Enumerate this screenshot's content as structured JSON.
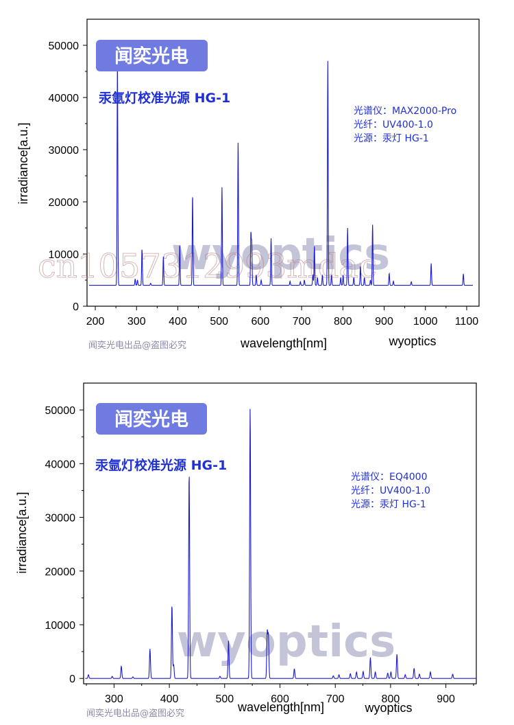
{
  "chart_data": [
    {
      "type": "line",
      "title": "汞氩灯校准光源 HG-1",
      "brand": "闻奕光电",
      "info_lines": [
        "光谱仪：MAX2000-Pro",
        "光纤：UV400-1.0",
        "光源：汞灯 HG-1"
      ],
      "xlabel": "wavelength[nm]",
      "ylabel": "irradiance[a.u.]",
      "credit_left": "闻奕光电出品@盗图必究",
      "credit_right": "wyoptics",
      "watermarks": [
        "wyoptics",
        "cn1057312993mdac"
      ],
      "xlim": [
        180,
        1130
      ],
      "ylim": [
        0,
        55000
      ],
      "xticks": [
        200,
        300,
        400,
        500,
        600,
        700,
        800,
        900,
        1000,
        1100
      ],
      "yticks": [
        0,
        10000,
        20000,
        30000,
        40000,
        50000
      ],
      "series_color": "#1a1ad0",
      "baseline": 4000,
      "x_start": 185,
      "x_end": 1115,
      "peaks": [
        {
          "x": 253.7,
          "y": 47000
        },
        {
          "x": 296.7,
          "y": 5200
        },
        {
          "x": 302.2,
          "y": 5000
        },
        {
          "x": 313.2,
          "y": 11000
        },
        {
          "x": 334.1,
          "y": 4400
        },
        {
          "x": 365.0,
          "y": 9500
        },
        {
          "x": 404.7,
          "y": 11800
        },
        {
          "x": 435.8,
          "y": 21300
        },
        {
          "x": 507.0,
          "y": 22800
        },
        {
          "x": 546.1,
          "y": 31500
        },
        {
          "x": 577.0,
          "y": 13700
        },
        {
          "x": 579.1,
          "y": 12000
        },
        {
          "x": 590.0,
          "y": 6000
        },
        {
          "x": 602.0,
          "y": 5000
        },
        {
          "x": 626.0,
          "y": 13000
        },
        {
          "x": 672.0,
          "y": 4800
        },
        {
          "x": 697.0,
          "y": 4700
        },
        {
          "x": 706.7,
          "y": 5000
        },
        {
          "x": 727.3,
          "y": 6000
        },
        {
          "x": 731.0,
          "y": 11500
        },
        {
          "x": 738.4,
          "y": 5500
        },
        {
          "x": 750.4,
          "y": 6000
        },
        {
          "x": 763.5,
          "y": 47000
        },
        {
          "x": 772.4,
          "y": 6000
        },
        {
          "x": 794.8,
          "y": 5500
        },
        {
          "x": 800.6,
          "y": 6000
        },
        {
          "x": 811.5,
          "y": 15000
        },
        {
          "x": 826.5,
          "y": 5500
        },
        {
          "x": 842.5,
          "y": 7600
        },
        {
          "x": 852.1,
          "y": 5500
        },
        {
          "x": 866.8,
          "y": 5000
        },
        {
          "x": 872.0,
          "y": 15600
        },
        {
          "x": 912.3,
          "y": 6300
        },
        {
          "x": 922.4,
          "y": 4800
        },
        {
          "x": 965.8,
          "y": 4700
        },
        {
          "x": 1014.0,
          "y": 8200
        },
        {
          "x": 1092.0,
          "y": 6200
        }
      ]
    },
    {
      "type": "line",
      "title": "汞氩灯校准光源 HG-1",
      "brand": "闻奕光电",
      "info_lines": [
        "光谱仪：EQ4000",
        "光纤：UV400-1.0",
        "光源：汞灯 HG-1"
      ],
      "xlabel": "wavelength[nm]",
      "ylabel": "irradiance[a.u.]",
      "credit_left": "闻奕光电出品@盗图必究",
      "credit_right": "wyoptics",
      "watermarks": [
        "wyoptics"
      ],
      "xlim": [
        245,
        955
      ],
      "ylim": [
        -1000,
        55000
      ],
      "xticks": [
        300,
        400,
        500,
        600,
        700,
        800,
        900
      ],
      "yticks": [
        0,
        10000,
        20000,
        30000,
        40000,
        50000
      ],
      "series_color": "#1a1ad0",
      "baseline": 0,
      "x_start": 248,
      "x_end": 955,
      "peaks": [
        {
          "x": 253.7,
          "y": 700
        },
        {
          "x": 296.7,
          "y": 400
        },
        {
          "x": 313.2,
          "y": 2300
        },
        {
          "x": 334.1,
          "y": 300
        },
        {
          "x": 365.0,
          "y": 5500
        },
        {
          "x": 404.7,
          "y": 13700
        },
        {
          "x": 407.8,
          "y": 2600
        },
        {
          "x": 435.8,
          "y": 38500
        },
        {
          "x": 491.6,
          "y": 400
        },
        {
          "x": 507.0,
          "y": 7000
        },
        {
          "x": 546.1,
          "y": 50500
        },
        {
          "x": 577.0,
          "y": 8600
        },
        {
          "x": 579.1,
          "y": 7800
        },
        {
          "x": 626.0,
          "y": 1800
        },
        {
          "x": 696.5,
          "y": 500
        },
        {
          "x": 706.7,
          "y": 700
        },
        {
          "x": 727.3,
          "y": 900
        },
        {
          "x": 738.4,
          "y": 1200
        },
        {
          "x": 750.4,
          "y": 1300
        },
        {
          "x": 763.5,
          "y": 3900
        },
        {
          "x": 772.4,
          "y": 1200
        },
        {
          "x": 794.8,
          "y": 1000
        },
        {
          "x": 800.6,
          "y": 1200
        },
        {
          "x": 811.5,
          "y": 4500
        },
        {
          "x": 826.5,
          "y": 700
        },
        {
          "x": 842.5,
          "y": 1900
        },
        {
          "x": 852.1,
          "y": 800
        },
        {
          "x": 872.0,
          "y": 1200
        },
        {
          "x": 912.3,
          "y": 800
        }
      ]
    }
  ]
}
